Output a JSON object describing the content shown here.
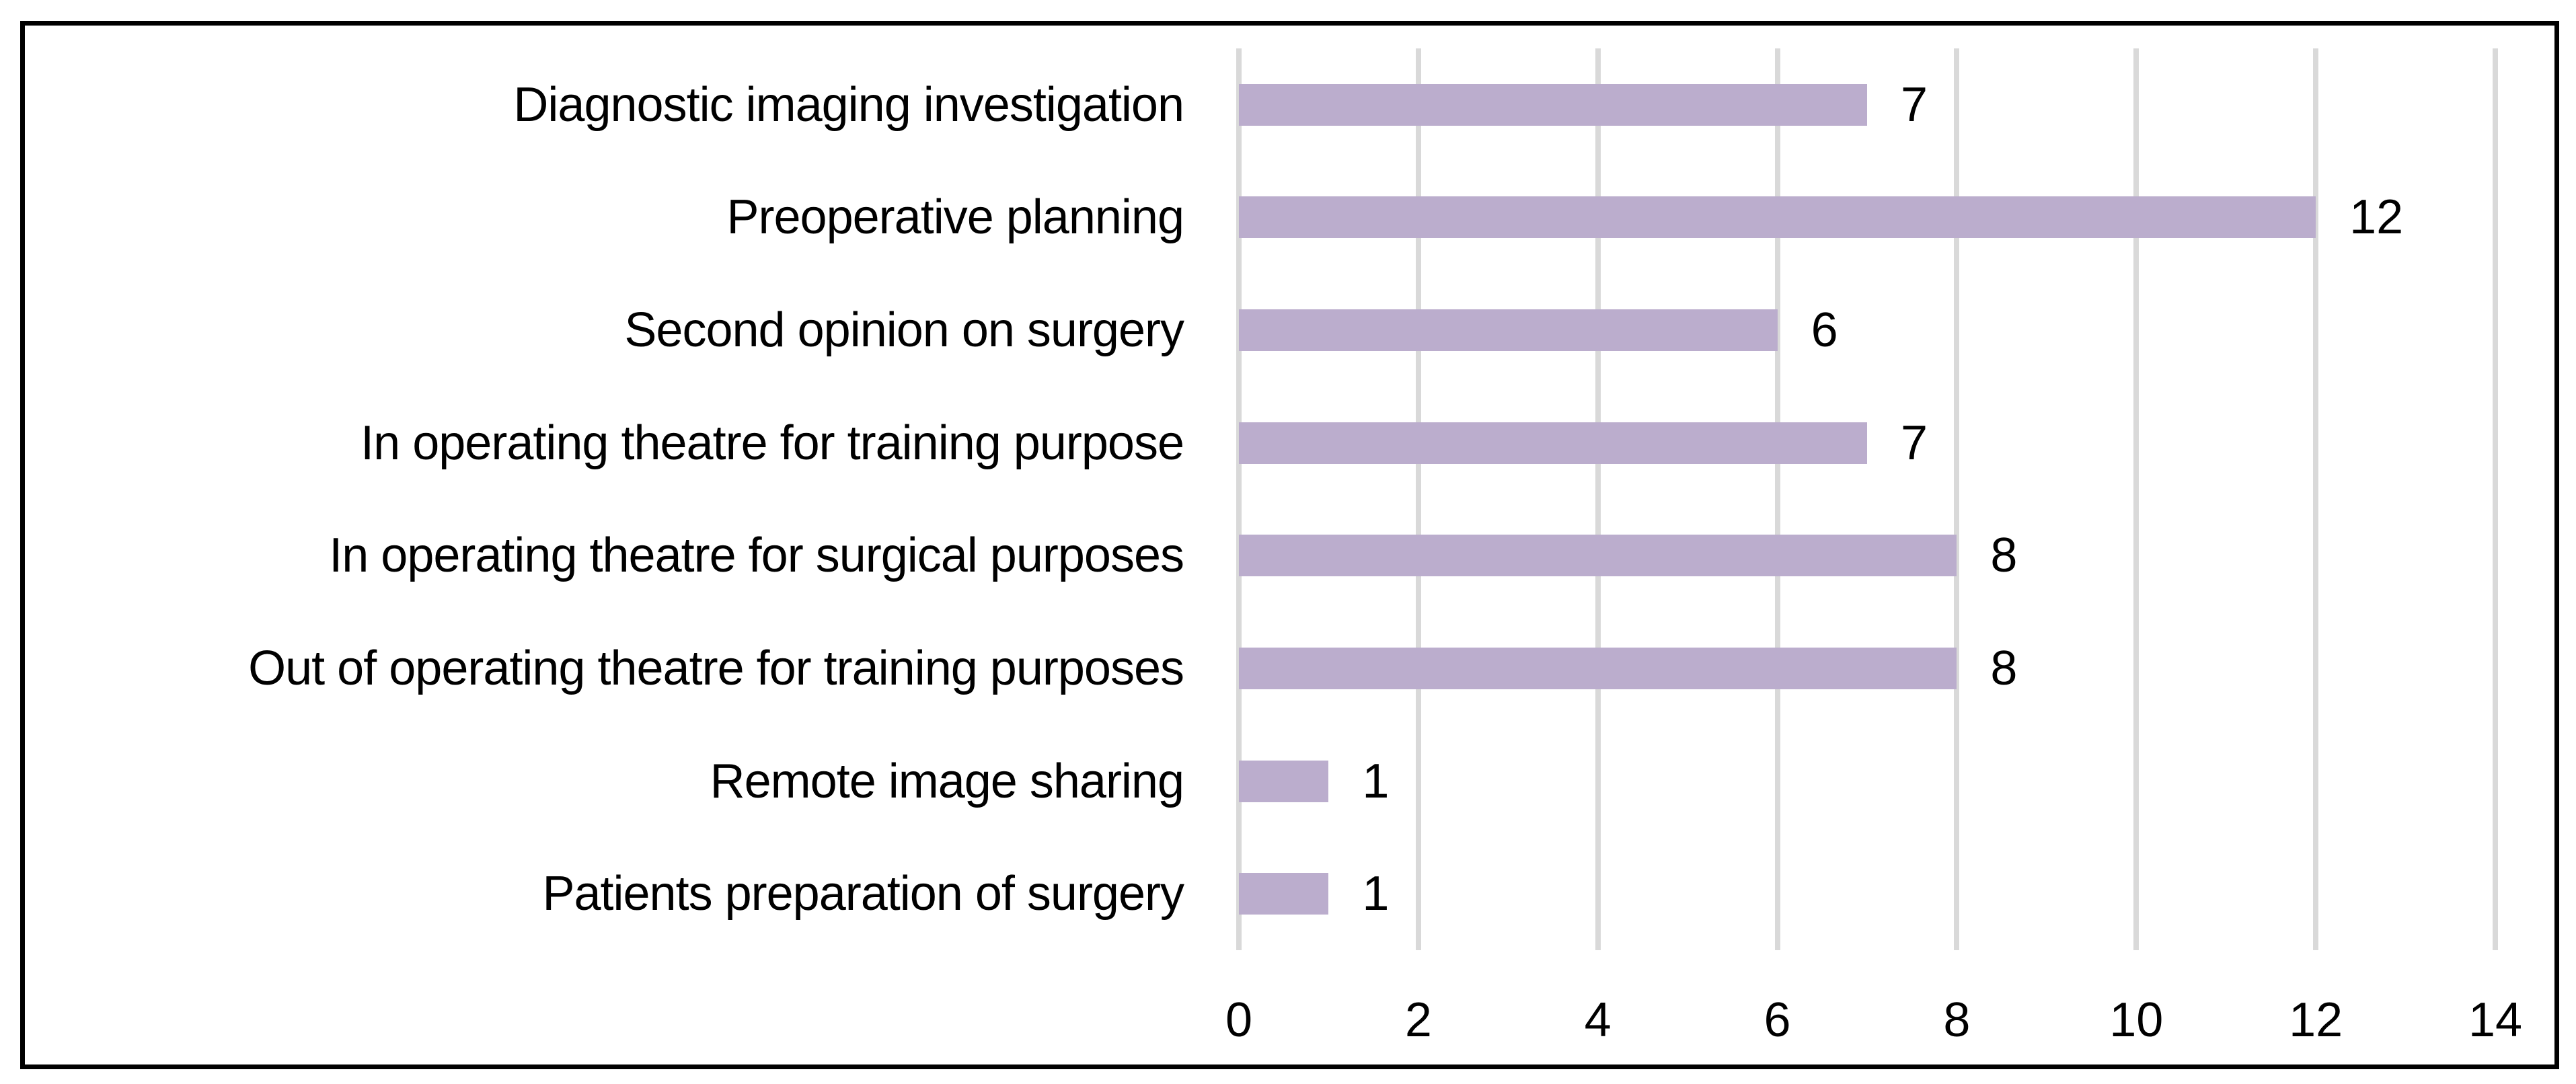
{
  "chart_data": {
    "type": "bar",
    "orientation": "horizontal",
    "title": "",
    "categories": [
      "Diagnostic imaging investigation",
      "Preoperative planning",
      "Second opinion on surgery",
      "In operating theatre for training purpose",
      "In operating theatre for surgical purposes",
      "Out of operating theatre for training purposes",
      "Remote image sharing",
      "Patients preparation of surgery"
    ],
    "values": [
      7,
      12,
      6,
      7,
      8,
      8,
      1,
      1
    ],
    "data_labels": [
      "7",
      "12",
      "6",
      "7",
      "8",
      "8",
      "1",
      "1"
    ],
    "xlabel": "",
    "ylabel": "",
    "xlim": [
      0,
      14
    ],
    "xticks": [
      0,
      2,
      4,
      6,
      8,
      10,
      12,
      14
    ],
    "grid": true,
    "legend": false,
    "colors": {
      "bar_fill": "#BBADCD",
      "gridline": "#D9D9D9",
      "text": "#000000",
      "frame_border": "#000000",
      "background": "#FFFFFF"
    }
  }
}
